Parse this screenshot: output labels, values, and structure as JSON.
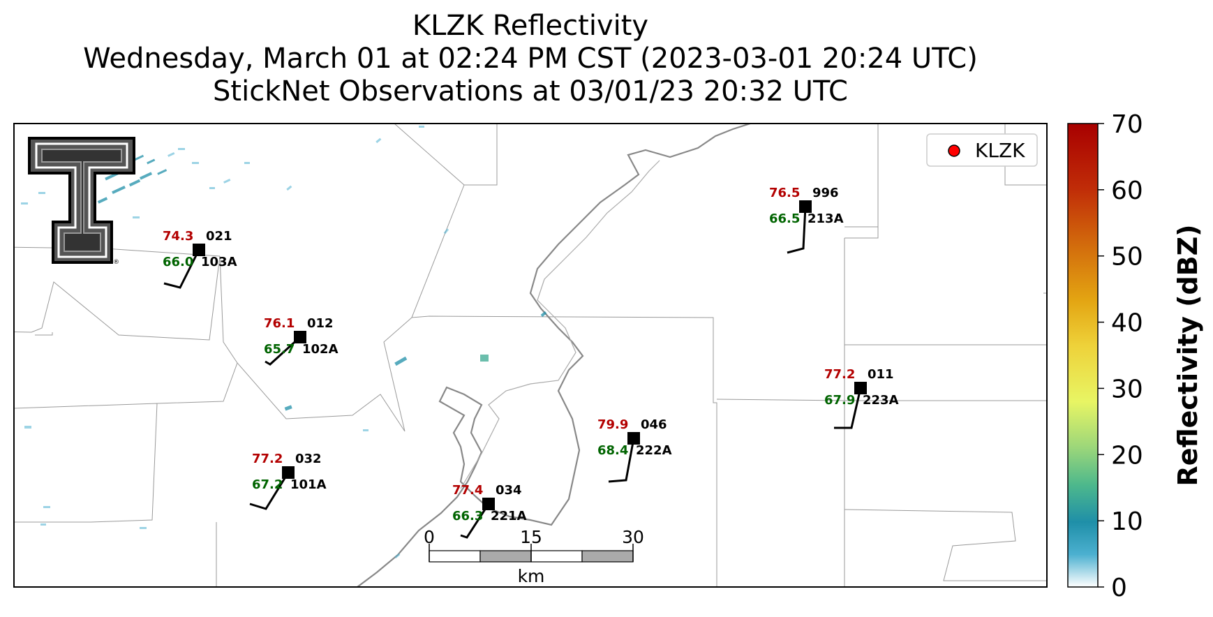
{
  "title": {
    "line1": "KLZK Reflectivity",
    "line2": "Wednesday, March 01 at 02:24 PM CST (2023-03-01 20:24 UTC)",
    "line3": "StickNet Observations at 03/01/23 20:32 UTC"
  },
  "legend": {
    "label": "KLZK",
    "marker_color": "#ff0000"
  },
  "colorbar": {
    "label": "Reflectivity (dBZ)",
    "ticks": [
      "0",
      "10",
      "20",
      "30",
      "40",
      "50",
      "60",
      "70"
    ],
    "min": 0,
    "max": 70
  },
  "scale_bar": {
    "ticks": [
      "0",
      "15",
      "30"
    ],
    "unit": "km"
  },
  "logo": {
    "name": "texas-tech-double-t-logo"
  },
  "colors": {
    "temperature": "#b30000",
    "dewpoint": "#006400",
    "river": "#888888",
    "county_lines": "#999999"
  },
  "stations": [
    {
      "id": "021",
      "probe": "103A",
      "temp": "74.3",
      "dew": "66.0"
    },
    {
      "id": "012",
      "probe": "102A",
      "temp": "76.1",
      "dew": "65.7"
    },
    {
      "id": "032",
      "probe": "101A",
      "temp": "77.2",
      "dew": "67.2"
    },
    {
      "id": "034",
      "probe": "221A",
      "temp": "77.4",
      "dew": "66.3"
    },
    {
      "id": "046",
      "probe": "222A",
      "temp": "79.9",
      "dew": "68.4"
    },
    {
      "id": "996",
      "probe": "213A",
      "temp": "76.5",
      "dew": "66.5"
    },
    {
      "id": "011",
      "probe": "223A",
      "temp": "77.2",
      "dew": "67.9"
    }
  ]
}
